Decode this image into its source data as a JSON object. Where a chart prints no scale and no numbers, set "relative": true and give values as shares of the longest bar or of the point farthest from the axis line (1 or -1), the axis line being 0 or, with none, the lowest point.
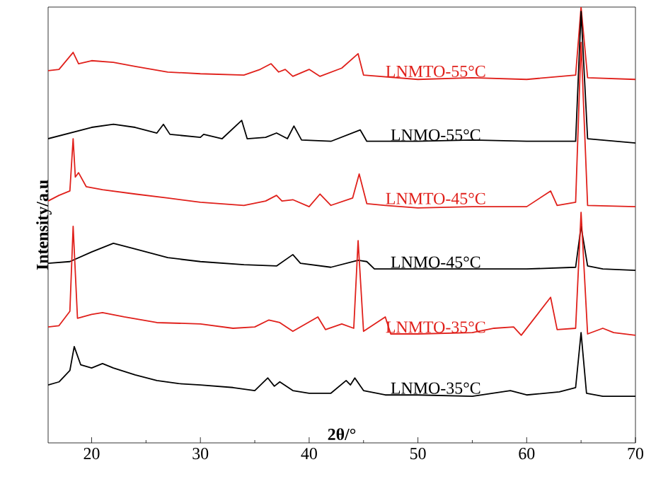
{
  "chart_data": {
    "type": "line",
    "relative": true,
    "xlabel": "2θ/°",
    "ylabel": "Intensity/a.u",
    "xlim": [
      16,
      70
    ],
    "xticks": [
      20,
      30,
      40,
      50,
      60,
      70
    ],
    "series": [
      {
        "name": "LNMO-35°C",
        "color": "#000000",
        "x": [
          16,
          17,
          18,
          18.4,
          19,
          20,
          21,
          22,
          24,
          26,
          28,
          30,
          33,
          35,
          36.2,
          36.8,
          37.3,
          38.5,
          40,
          42,
          43.4,
          43.8,
          44.2,
          45,
          47,
          50,
          55,
          58.5,
          60,
          63,
          64.5,
          65,
          65.5,
          67,
          70
        ],
        "values": [
          0.133,
          0.14,
          0.166,
          0.221,
          0.179,
          0.172,
          0.182,
          0.172,
          0.156,
          0.143,
          0.136,
          0.133,
          0.127,
          0.12,
          0.149,
          0.13,
          0.14,
          0.12,
          0.114,
          0.114,
          0.143,
          0.133,
          0.149,
          0.12,
          0.11,
          0.11,
          0.107,
          0.12,
          0.11,
          0.117,
          0.127,
          0.253,
          0.114,
          0.107,
          0.107
        ]
      },
      {
        "name": "LNMTO-35°C",
        "color": "#e0201b",
        "x": [
          16,
          17,
          18,
          18.3,
          18.7,
          20,
          21,
          23,
          26,
          30,
          33,
          35,
          36.3,
          37.3,
          38.5,
          40.8,
          41.5,
          43,
          44.1,
          44.5,
          45,
          47,
          47.5,
          50,
          55,
          57,
          58.8,
          59.5,
          62.2,
          62.8,
          64.5,
          65,
          65.6,
          67,
          68,
          70
        ],
        "values": [
          0.266,
          0.269,
          0.302,
          0.497,
          0.286,
          0.295,
          0.299,
          0.289,
          0.276,
          0.273,
          0.263,
          0.266,
          0.282,
          0.276,
          0.256,
          0.289,
          0.26,
          0.273,
          0.263,
          0.464,
          0.256,
          0.289,
          0.25,
          0.25,
          0.253,
          0.263,
          0.266,
          0.247,
          0.334,
          0.26,
          0.263,
          0.529,
          0.25,
          0.263,
          0.253,
          0.247
        ]
      },
      {
        "name": "LNMO-45°C",
        "color": "#000000",
        "x": [
          16,
          18,
          20,
          22,
          24,
          27,
          30,
          34,
          37,
          38.5,
          39.2,
          42,
          44.5,
          45.3,
          46,
          50,
          55,
          60,
          64.5,
          65,
          65.6,
          67,
          70
        ],
        "values": [
          0.412,
          0.416,
          0.438,
          0.458,
          0.445,
          0.425,
          0.416,
          0.409,
          0.406,
          0.432,
          0.412,
          0.403,
          0.419,
          0.416,
          0.399,
          0.399,
          0.399,
          0.399,
          0.403,
          0.497,
          0.406,
          0.399,
          0.396
        ]
      },
      {
        "name": "LNMTO-45°C",
        "color": "#e0201b",
        "x": [
          16,
          17,
          18,
          18.3,
          18.5,
          18.8,
          19.5,
          21,
          24,
          27,
          30,
          34,
          36,
          37,
          37.5,
          38.5,
          40,
          41,
          42,
          44,
          44.6,
          45.3,
          47,
          50,
          55,
          60,
          62.2,
          62.8,
          64.5,
          65,
          65.6,
          70
        ],
        "values": [
          0.555,
          0.568,
          0.578,
          0.698,
          0.61,
          0.62,
          0.588,
          0.581,
          0.571,
          0.562,
          0.552,
          0.545,
          0.555,
          0.568,
          0.555,
          0.558,
          0.542,
          0.571,
          0.545,
          0.562,
          0.617,
          0.549,
          0.545,
          0.539,
          0.542,
          0.542,
          0.578,
          0.545,
          0.552,
          0.919,
          0.545,
          0.542
        ]
      },
      {
        "name": "LNMO-55°C",
        "color": "#000000",
        "x": [
          16,
          18,
          20,
          22,
          24,
          26,
          26.6,
          27.2,
          30,
          30.3,
          32,
          33.8,
          34.3,
          36,
          37,
          38,
          38.6,
          39.3,
          42,
          44.7,
          45.3,
          50,
          55,
          60,
          64.5,
          65,
          65.6,
          70
        ],
        "values": [
          0.698,
          0.711,
          0.724,
          0.731,
          0.724,
          0.711,
          0.731,
          0.708,
          0.701,
          0.708,
          0.698,
          0.74,
          0.698,
          0.701,
          0.711,
          0.698,
          0.727,
          0.695,
          0.692,
          0.718,
          0.692,
          0.692,
          0.695,
          0.692,
          0.692,
          0.99,
          0.698,
          0.688
        ]
      },
      {
        "name": "LNMTO-55°C",
        "color": "#e0201b",
        "x": [
          16,
          17,
          18.3,
          18.8,
          20,
          22,
          24,
          27,
          30,
          34,
          35.5,
          36.5,
          37.2,
          37.8,
          38.5,
          40,
          41,
          43,
          44.5,
          45,
          50,
          55,
          60,
          64.5,
          65,
          65.6,
          70
        ],
        "values": [
          0.854,
          0.857,
          0.896,
          0.87,
          0.877,
          0.873,
          0.864,
          0.851,
          0.847,
          0.844,
          0.857,
          0.87,
          0.851,
          0.857,
          0.841,
          0.857,
          0.841,
          0.86,
          0.893,
          0.844,
          0.834,
          0.838,
          0.834,
          0.844,
          1.0,
          0.838,
          0.834
        ]
      }
    ]
  }
}
